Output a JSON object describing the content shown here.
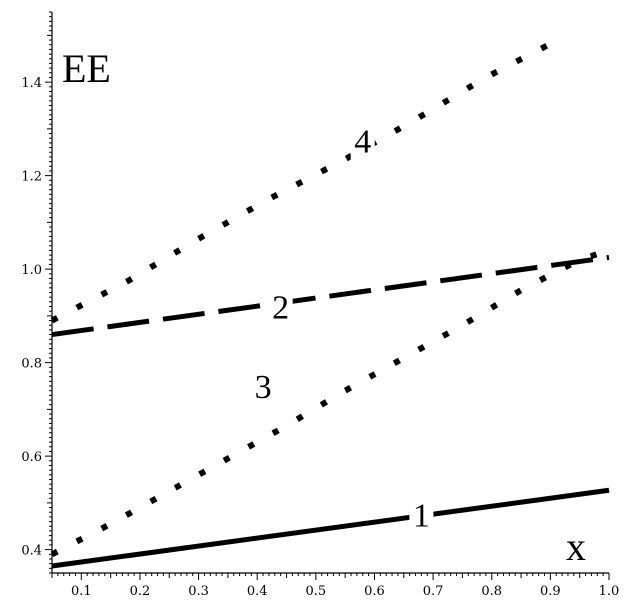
{
  "chart_data": {
    "type": "line",
    "xlabel": "x",
    "ylabel": "EE",
    "xlim": [
      0.05,
      1.0
    ],
    "ylim": [
      0.35,
      1.55
    ],
    "x_ticks": [
      "0.1",
      "0.2",
      "0.3",
      "0.4",
      "0.5",
      "0.6",
      "0.7",
      "0.8",
      "0.9",
      "1.0"
    ],
    "y_ticks": [
      "0.4",
      "0.6",
      "0.8",
      "1.0",
      "1.2",
      "1.4"
    ],
    "grid": false,
    "legend": "none",
    "series": [
      {
        "name": "1",
        "style": "solid",
        "x": [
          0.05,
          1.0
        ],
        "y": [
          0.365,
          0.527
        ],
        "label_at": [
          0.68,
          0.475
        ]
      },
      {
        "name": "2",
        "style": "dashed",
        "x": [
          0.05,
          1.0
        ],
        "y": [
          0.86,
          1.025
        ],
        "label_at": [
          0.44,
          0.92
        ]
      },
      {
        "name": "3",
        "style": "dotted",
        "x": [
          0.05,
          0.15,
          0.25,
          0.35,
          0.45,
          0.55,
          0.65,
          0.75,
          0.85,
          0.95,
          1.0
        ],
        "y": [
          0.39,
          0.455,
          0.525,
          0.595,
          0.665,
          0.74,
          0.81,
          0.88,
          0.955,
          1.02,
          1.04
        ],
        "label_at": [
          0.41,
          0.75
        ]
      },
      {
        "name": "4",
        "style": "dotted",
        "x": [
          0.05,
          0.18,
          0.3,
          0.42,
          0.55,
          0.67,
          0.79,
          0.92
        ],
        "y": [
          0.89,
          0.975,
          1.065,
          1.15,
          1.235,
          1.32,
          1.41,
          1.495
        ],
        "label_at": [
          0.58,
          1.275
        ]
      }
    ]
  }
}
